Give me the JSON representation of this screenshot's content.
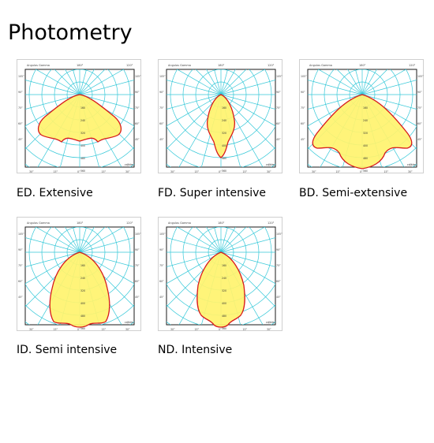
{
  "page": {
    "title": "Photometry"
  },
  "diagram_labels": {
    "header": "Angulos Gamma",
    "top_left_angle": "180°",
    "top_right_angle": "120°",
    "side_angles": [
      "105°",
      "90°",
      "75°",
      "60°",
      "45°"
    ],
    "bottom_angles": [
      "30°",
      "15°",
      "0°",
      "15°",
      "30°"
    ],
    "unit": "cd/klm",
    "ring_values": [
      "160",
      "240",
      "320",
      "400",
      "480",
      "560"
    ]
  },
  "items": [
    {
      "id": "ed",
      "caption": "ED. Extensive",
      "distribution": "extensive"
    },
    {
      "id": "fd",
      "caption": "FD. Super intensive",
      "distribution": "super-intensive"
    },
    {
      "id": "bd",
      "caption": "BD. Semi-extensive",
      "distribution": "semi-extensive"
    },
    {
      "id": "id",
      "caption": "ID. Semi intensive",
      "distribution": "semi-intensive"
    },
    {
      "id": "nd",
      "caption": "ND. Intensive",
      "distribution": "intensive"
    }
  ],
  "colors": {
    "grid": "#35c8d8",
    "curve": "#d81b1b",
    "fill": "#fff36e",
    "frame": "#1a1a1a"
  }
}
